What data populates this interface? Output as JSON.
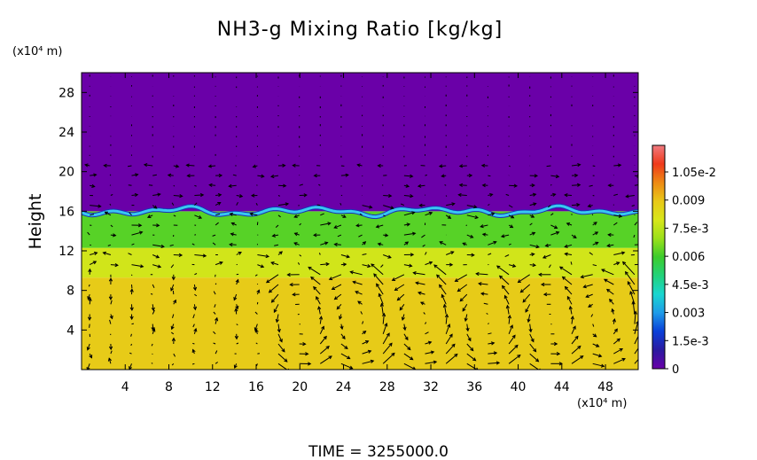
{
  "chart_data": {
    "type": "heatmap",
    "title": "NH3-g Mixing Ratio [kg/kg]",
    "ylabel": "Height",
    "y_unit_label": "(x10⁴ m)",
    "x_unit_label": "(x10⁴ m)",
    "footer": "TIME  =  3255000.0",
    "xlim": [
      0,
      51
    ],
    "ylim": [
      0,
      30
    ],
    "x_ticks": [
      "4",
      "8",
      "12",
      "16",
      "20",
      "24",
      "28",
      "32",
      "36",
      "40",
      "44",
      "48"
    ],
    "y_ticks": [
      "4",
      "8",
      "12",
      "16",
      "20",
      "24",
      "28"
    ],
    "colorbar": {
      "min": 0,
      "max": 0.0105,
      "labels": [
        {
          "value": 0.0105,
          "text": "1.05e-2"
        },
        {
          "value": 0.009,
          "text": "0.009"
        },
        {
          "value": 0.0075,
          "text": "7.5e-3"
        },
        {
          "value": 0.006,
          "text": "0.006"
        },
        {
          "value": 0.0045,
          "text": "4.5e-3"
        },
        {
          "value": 0.003,
          "text": "0.003"
        },
        {
          "value": 0.0015,
          "text": "1.5e-3"
        },
        {
          "value": 0,
          "text": "0"
        }
      ],
      "colors": [
        "#6a00a8",
        "#2b1aa0",
        "#0a3fd8",
        "#1f9be8",
        "#1ad6d0",
        "#22d27a",
        "#3ccc2c",
        "#9be01a",
        "#d8e61a",
        "#e8c818",
        "#ee8a14",
        "#ef3a1c",
        "#f07a80"
      ]
    },
    "field_bands": [
      {
        "from_height": 0,
        "to_height": 9.3,
        "value": 0.0078
      },
      {
        "from_height": 9.3,
        "to_height": 12.3,
        "value": 0.0069
      },
      {
        "from_height": 12.3,
        "to_height": 16.0,
        "value": 0.0055
      },
      {
        "from_height": 16.0,
        "to_height": 30,
        "value": 0.0
      }
    ],
    "interface_height": 16.0,
    "grid": false
  }
}
